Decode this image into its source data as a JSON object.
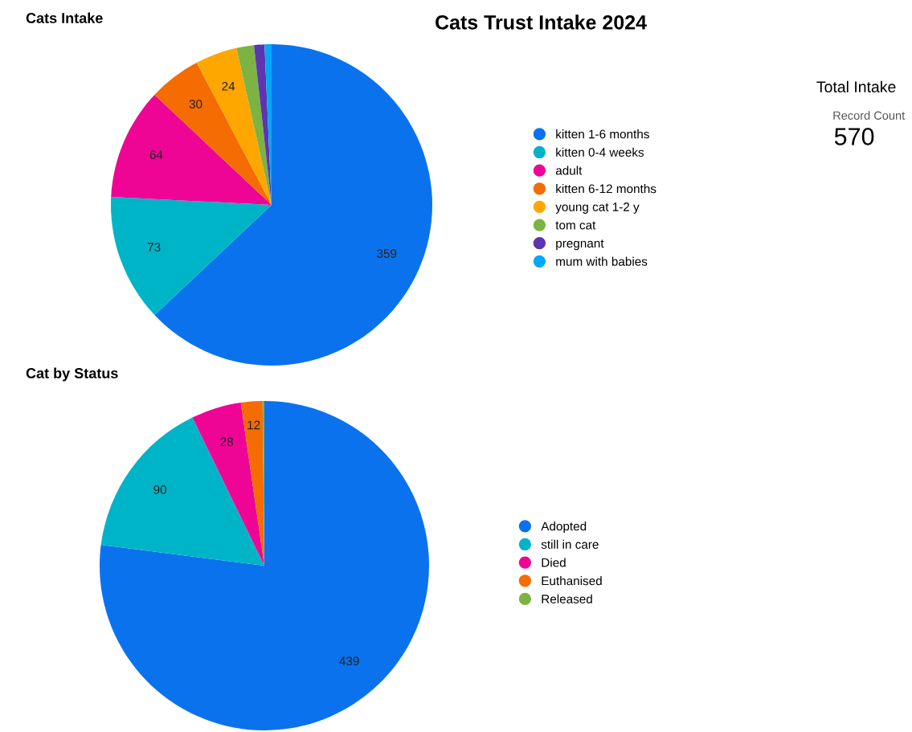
{
  "chart_data": [
    {
      "type": "pie",
      "title": "Cats Intake",
      "annotations": [
        "Cats Trust Intake 2024"
      ],
      "legend": "right",
      "categories": [
        "kitten 1-6 months",
        "kitten 0-4 weeks",
        "adult",
        "kitten 6-12 months",
        "young cat 1-2 y",
        "tom cat",
        "pregnant",
        "mum with babies"
      ],
      "values": [
        359,
        73,
        64,
        30,
        24,
        10,
        6,
        4
      ],
      "value_labels": [
        "359",
        "73",
        "64",
        "30",
        "24",
        null,
        null,
        null
      ],
      "colors": [
        "#0b72ee",
        "#00b4c8",
        "#ee0596",
        "#f46c02",
        "#ffa700",
        "#7cb342",
        "#5e35b1",
        "#03a9f4"
      ]
    },
    {
      "type": "pie",
      "title": "Cat by Status",
      "legend": "right",
      "categories": [
        "Adopted",
        "still in care",
        "Died",
        "Euthanised",
        "Released"
      ],
      "values": [
        439,
        90,
        28,
        12,
        1
      ],
      "value_labels": [
        "439",
        "90",
        "28",
        "12",
        null
      ],
      "colors": [
        "#0b72ee",
        "#00b4c8",
        "#ee0596",
        "#f46c02",
        "#7cb342"
      ]
    },
    {
      "type": "other",
      "title": "Total Intake",
      "categories": [
        "Record Count"
      ],
      "values": [
        570
      ],
      "data_labels": true
    }
  ]
}
